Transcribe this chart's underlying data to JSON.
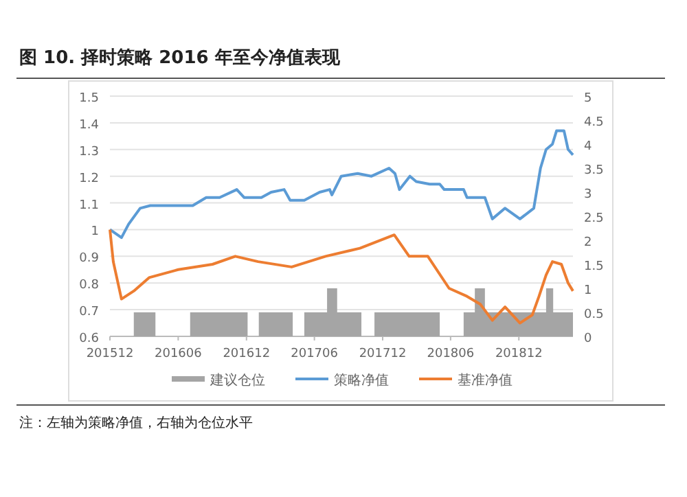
{
  "chart_data": {
    "type": "line",
    "title": "图 10. 择时策略 2016 年至今净值表现",
    "annotations": [
      "注：左轴为策略净值，右轴为仓位水平"
    ],
    "xlim": [
      "2015-12-01",
      "2019-04-25"
    ],
    "xticks": [
      {
        "value": "2015-12-01",
        "label": "201512"
      },
      {
        "value": "2016-06-01",
        "label": "201606"
      },
      {
        "value": "2016-12-01",
        "label": "201612"
      },
      {
        "value": "2017-06-01",
        "label": "201706"
      },
      {
        "value": "2017-12-01",
        "label": "201712"
      },
      {
        "value": "2018-06-01",
        "label": "201806"
      },
      {
        "value": "2018-12-01",
        "label": "201812"
      }
    ],
    "ylim": [
      0.6,
      1.5
    ],
    "yticks": [
      0.6,
      0.7,
      0.8,
      0.9,
      1,
      1.1,
      1.2,
      1.3,
      1.4,
      1.5
    ],
    "y2lim": [
      0,
      5
    ],
    "y2ticks": [
      0,
      0.5,
      1,
      1.5,
      2,
      2.5,
      3,
      3.5,
      4,
      4.5,
      5
    ],
    "grid": "y",
    "legend": "bottom",
    "series": [
      {
        "name": "建议仓位",
        "type": "area",
        "axis": "y2",
        "color": "#a5a5a5",
        "x": [
          "2015-12-01",
          "2016-02-03",
          "2016-02-03",
          "2016-04-01",
          "2016-04-01",
          "2016-07-03",
          "2016-07-03",
          "2016-12-04",
          "2016-12-04",
          "2017-01-03",
          "2017-01-03",
          "2017-04-04",
          "2017-04-04",
          "2017-05-05",
          "2017-05-05",
          "2017-07-05",
          "2017-07-05",
          "2017-08-01",
          "2017-08-01",
          "2017-10-05",
          "2017-10-05",
          "2017-11-09",
          "2017-11-09",
          "2018-05-03",
          "2018-05-03",
          "2018-07-06",
          "2018-07-06",
          "2018-08-05",
          "2018-08-05",
          "2018-09-01",
          "2018-09-01",
          "2019-02-12",
          "2019-02-12",
          "2019-03-03",
          "2019-03-03",
          "2019-04-25"
        ],
        "values": [
          0,
          0,
          0.5,
          0.5,
          0,
          0,
          0.5,
          0.5,
          0,
          0,
          0.5,
          0.5,
          0,
          0,
          0.5,
          0.5,
          1,
          1,
          0.5,
          0.5,
          0,
          0,
          0.5,
          0.5,
          0,
          0,
          0.5,
          0.5,
          1,
          1,
          0.5,
          0.5,
          1,
          1,
          0.5,
          0.5
        ]
      },
      {
        "name": "策略净值",
        "color": "#5b9bd5",
        "x": [
          "2015-12-01",
          "2016-01-01",
          "2016-01-20",
          "2016-02-20",
          "2016-03-18",
          "2016-07-10",
          "2016-08-15",
          "2016-09-20",
          "2016-11-05",
          "2016-11-25",
          "2017-01-10",
          "2017-02-05",
          "2017-03-12",
          "2017-03-28",
          "2017-05-05",
          "2017-06-15",
          "2017-07-12",
          "2017-07-18",
          "2017-08-12",
          "2017-09-25",
          "2017-11-01",
          "2017-12-18",
          "2018-01-03",
          "2018-01-15",
          "2018-02-12",
          "2018-03-01",
          "2018-04-06",
          "2018-05-03",
          "2018-05-15",
          "2018-07-06",
          "2018-07-15",
          "2018-08-12",
          "2018-09-01",
          "2018-09-21",
          "2018-10-25",
          "2018-12-04",
          "2019-01-10",
          "2019-01-28",
          "2019-02-12",
          "2019-03-01",
          "2019-03-12",
          "2019-04-01",
          "2019-04-12",
          "2019-04-25"
        ],
        "values": [
          1.0,
          0.97,
          1.02,
          1.08,
          1.09,
          1.09,
          1.12,
          1.12,
          1.15,
          1.12,
          1.12,
          1.14,
          1.15,
          1.11,
          1.11,
          1.14,
          1.15,
          1.13,
          1.2,
          1.21,
          1.2,
          1.23,
          1.21,
          1.15,
          1.2,
          1.18,
          1.17,
          1.17,
          1.15,
          1.15,
          1.12,
          1.12,
          1.12,
          1.04,
          1.08,
          1.04,
          1.08,
          1.23,
          1.3,
          1.32,
          1.37,
          1.37,
          1.3,
          1.28
        ]
      },
      {
        "name": "基准净值",
        "color": "#ed7d31",
        "x": [
          "2015-12-01",
          "2015-12-10",
          "2016-01-01",
          "2016-02-03",
          "2016-03-15",
          "2016-06-01",
          "2016-09-01",
          "2016-11-01",
          "2017-01-01",
          "2017-04-01",
          "2017-07-01",
          "2017-10-01",
          "2018-01-01",
          "2018-02-10",
          "2018-04-01",
          "2018-05-28",
          "2018-07-15",
          "2018-08-20",
          "2018-09-21",
          "2018-10-25",
          "2018-12-04",
          "2019-01-06",
          "2019-01-24",
          "2019-02-12",
          "2019-03-01",
          "2019-03-25",
          "2019-04-12",
          "2019-04-25"
        ],
        "values": [
          1.0,
          0.88,
          0.74,
          0.77,
          0.82,
          0.85,
          0.87,
          0.9,
          0.88,
          0.86,
          0.9,
          0.93,
          0.98,
          0.9,
          0.9,
          0.78,
          0.75,
          0.72,
          0.66,
          0.71,
          0.65,
          0.68,
          0.75,
          0.83,
          0.88,
          0.87,
          0.8,
          0.77
        ]
      }
    ]
  }
}
